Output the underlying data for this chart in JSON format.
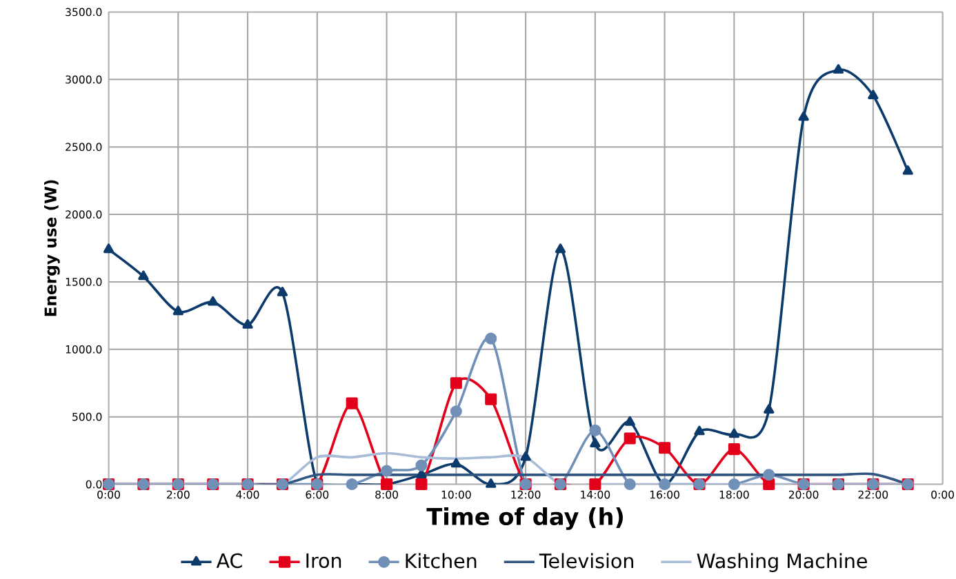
{
  "chart_data": {
    "type": "line",
    "xlabel": "Time of day (h)",
    "ylabel": "Energy use (W)",
    "x": [
      0,
      1,
      2,
      3,
      4,
      5,
      6,
      7,
      8,
      9,
      10,
      11,
      12,
      13,
      14,
      15,
      16,
      17,
      18,
      19,
      20,
      21,
      22,
      23
    ],
    "xlim": [
      0,
      24
    ],
    "ylim": [
      0,
      3500
    ],
    "xticks": [
      {
        "value": 0,
        "label": "0:00"
      },
      {
        "value": 2,
        "label": "2:00"
      },
      {
        "value": 4,
        "label": "4:00"
      },
      {
        "value": 6,
        "label": "6:00"
      },
      {
        "value": 8,
        "label": "8:00"
      },
      {
        "value": 10,
        "label": "10:00"
      },
      {
        "value": 12,
        "label": "12:00"
      },
      {
        "value": 14,
        "label": "14:00"
      },
      {
        "value": 16,
        "label": "16:00"
      },
      {
        "value": 18,
        "label": "18:00"
      },
      {
        "value": 20,
        "label": "20:00"
      },
      {
        "value": 22,
        "label": "22:00"
      },
      {
        "value": 24,
        "label": "0:00"
      }
    ],
    "yticks": [
      {
        "value": 0,
        "label": "0.0"
      },
      {
        "value": 500,
        "label": "500.0"
      },
      {
        "value": 1000,
        "label": "1000.0"
      },
      {
        "value": 1500,
        "label": "1500.0"
      },
      {
        "value": 2000,
        "label": "2000.0"
      },
      {
        "value": 2500,
        "label": "2500.0"
      },
      {
        "value": 3000,
        "label": "3000.0"
      },
      {
        "value": 3500,
        "label": "3500.0"
      }
    ],
    "grid": true,
    "legend": "bottom",
    "series": [
      {
        "name": "AC",
        "color": "#0b3a6b",
        "marker": "triangle",
        "values": [
          1740,
          1540,
          1280,
          1350,
          1180,
          1420,
          0,
          0,
          0,
          70,
          150,
          0,
          200,
          1740,
          300,
          460,
          0,
          390,
          370,
          550,
          2720,
          3070,
          2880,
          2320
        ]
      },
      {
        "name": "Iron",
        "color": "#e2001a",
        "marker": "square",
        "values": [
          0,
          0,
          0,
          0,
          0,
          0,
          0,
          600,
          0,
          0,
          750,
          630,
          0,
          0,
          0,
          340,
          270,
          0,
          260,
          0,
          0,
          0,
          0,
          0
        ]
      },
      {
        "name": "Kitchen",
        "color": "#7090b8",
        "marker": "circle",
        "values": [
          0,
          0,
          0,
          0,
          0,
          0,
          0,
          0,
          100,
          140,
          540,
          1080,
          0,
          0,
          400,
          0,
          0,
          0,
          0,
          70,
          0,
          0,
          0,
          0
        ]
      },
      {
        "name": "Television",
        "color": "#2f5580",
        "marker": "none",
        "values": [
          0,
          0,
          0,
          0,
          0,
          0,
          70,
          70,
          70,
          70,
          70,
          70,
          70,
          70,
          70,
          70,
          70,
          70,
          70,
          70,
          70,
          70,
          75,
          0
        ]
      },
      {
        "name": "Washing Machine",
        "color": "#a8bcd8",
        "marker": "none",
        "values": [
          0,
          0,
          0,
          0,
          0,
          0,
          200,
          200,
          230,
          200,
          190,
          200,
          200,
          0,
          0,
          0,
          0,
          0,
          0,
          0,
          0,
          0,
          0,
          0
        ]
      }
    ]
  }
}
